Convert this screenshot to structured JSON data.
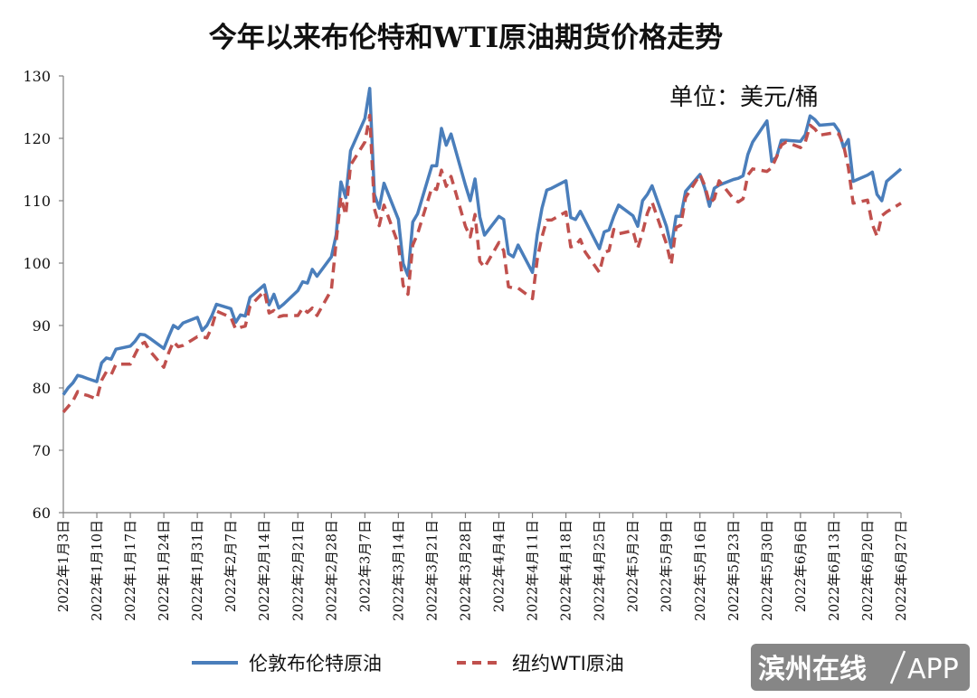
{
  "chart_data": {
    "type": "line",
    "title": "今年以来布伦特和WTI原油期货价格走势",
    "unit_label": "单位：美元/桶",
    "ylim": [
      60,
      130
    ],
    "yticks": [
      60,
      70,
      80,
      90,
      100,
      110,
      120,
      130
    ],
    "grid": false,
    "legend_position": "bottom",
    "x_start": "2022-01-03",
    "x_end": "2022-06-27",
    "x_tick_labels": [
      "2022年1月3日",
      "2022年1月10日",
      "2022年1月17日",
      "2022年1月24日",
      "2022年1月31日",
      "2022年2月7日",
      "2022年2月14日",
      "2022年2月21日",
      "2022年2月28日",
      "2022年3月7日",
      "2022年3月14日",
      "2022年3月21日",
      "2022年3月28日",
      "2022年4月4日",
      "2022年4月11日",
      "2022年4月18日",
      "2022年4月25日",
      "2022年5月2日",
      "2022年5月9日",
      "2022年5月16日",
      "2022年5月23日",
      "2022年5月30日",
      "2022年6月6日",
      "2022年6月13日",
      "2022年6月20日",
      "2022年6月27日"
    ],
    "series": [
      {
        "name": "伦敦布伦特原油",
        "color": "#4a7ebb",
        "dash": "solid",
        "points": [
          [
            0,
            78.9
          ],
          [
            1,
            80.0
          ],
          [
            2,
            80.8
          ],
          [
            3,
            82.0
          ],
          [
            4,
            81.8
          ],
          [
            5,
            81.5
          ],
          [
            7,
            81.0
          ],
          [
            8,
            84.0
          ],
          [
            9,
            84.8
          ],
          [
            10,
            84.6
          ],
          [
            11,
            86.2
          ],
          [
            14,
            86.7
          ],
          [
            15,
            87.5
          ],
          [
            16,
            88.6
          ],
          [
            17,
            88.5
          ],
          [
            18,
            88.0
          ],
          [
            21,
            86.3
          ],
          [
            22,
            88.2
          ],
          [
            23,
            90.0
          ],
          [
            24,
            89.5
          ],
          [
            25,
            90.4
          ],
          [
            28,
            91.3
          ],
          [
            29,
            89.2
          ],
          [
            30,
            90.0
          ],
          [
            31,
            91.5
          ],
          [
            32,
            93.4
          ],
          [
            35,
            92.7
          ],
          [
            36,
            90.5
          ],
          [
            37,
            91.7
          ],
          [
            38,
            91.5
          ],
          [
            39,
            94.5
          ],
          [
            42,
            96.5
          ],
          [
            43,
            93.3
          ],
          [
            44,
            95.0
          ],
          [
            45,
            92.8
          ],
          [
            46,
            93.4
          ],
          [
            49,
            95.6
          ],
          [
            50,
            97.0
          ],
          [
            51,
            96.8
          ],
          [
            52,
            99.0
          ],
          [
            53,
            97.9
          ],
          [
            56,
            101.0
          ],
          [
            57,
            104.5
          ],
          [
            58,
            113.0
          ],
          [
            59,
            110.5
          ],
          [
            60,
            118.0
          ],
          [
            63,
            123.2
          ],
          [
            64,
            128.0
          ],
          [
            65,
            111.0
          ],
          [
            66,
            108.8
          ],
          [
            67,
            112.8
          ],
          [
            70,
            107.0
          ],
          [
            71,
            99.9
          ],
          [
            72,
            98.0
          ],
          [
            73,
            106.6
          ],
          [
            74,
            107.9
          ],
          [
            77,
            115.6
          ],
          [
            78,
            115.6
          ],
          [
            79,
            121.6
          ],
          [
            80,
            118.9
          ],
          [
            81,
            120.7
          ],
          [
            84,
            112.5
          ],
          [
            85,
            110.0
          ],
          [
            86,
            113.5
          ],
          [
            87,
            107.4
          ],
          [
            88,
            104.5
          ],
          [
            91,
            107.5
          ],
          [
            92,
            107.0
          ],
          [
            93,
            101.5
          ],
          [
            94,
            101.0
          ],
          [
            95,
            102.9
          ],
          [
            98,
            98.5
          ],
          [
            99,
            104.6
          ],
          [
            100,
            108.8
          ],
          [
            101,
            111.7
          ],
          [
            102,
            112.0
          ],
          [
            105,
            113.2
          ],
          [
            106,
            107.3
          ],
          [
            107,
            107.0
          ],
          [
            108,
            108.3
          ],
          [
            109,
            106.8
          ],
          [
            112,
            102.3
          ],
          [
            113,
            105.0
          ],
          [
            114,
            105.3
          ],
          [
            115,
            107.5
          ],
          [
            116,
            109.3
          ],
          [
            119,
            107.6
          ],
          [
            120,
            105.9
          ],
          [
            121,
            110.0
          ],
          [
            122,
            111.0
          ],
          [
            123,
            112.4
          ],
          [
            126,
            105.9
          ],
          [
            127,
            102.5
          ],
          [
            128,
            107.5
          ],
          [
            129,
            107.5
          ],
          [
            130,
            111.5
          ],
          [
            133,
            114.2
          ],
          [
            134,
            112.0
          ],
          [
            135,
            109.1
          ],
          [
            136,
            112.0
          ],
          [
            137,
            112.5
          ],
          [
            140,
            113.4
          ],
          [
            141,
            113.6
          ],
          [
            142,
            114.0
          ],
          [
            143,
            117.4
          ],
          [
            144,
            119.4
          ],
          [
            147,
            122.8
          ],
          [
            148,
            116.3
          ],
          [
            149,
            117.0
          ],
          [
            150,
            119.7
          ],
          [
            151,
            119.7
          ],
          [
            154,
            119.5
          ],
          [
            155,
            120.6
          ],
          [
            156,
            123.6
          ],
          [
            157,
            123.0
          ],
          [
            158,
            122.1
          ],
          [
            161,
            122.3
          ],
          [
            162,
            121.2
          ],
          [
            163,
            118.5
          ],
          [
            164,
            119.8
          ],
          [
            165,
            113.1
          ],
          [
            168,
            114.1
          ],
          [
            169,
            114.6
          ],
          [
            170,
            111.0
          ],
          [
            171,
            110.0
          ],
          [
            172,
            113.1
          ],
          [
            175,
            115.1
          ]
        ]
      },
      {
        "name": "纽约WTI原油",
        "color": "#c0504d",
        "dash": "dashed",
        "points": [
          [
            0,
            76.1
          ],
          [
            1,
            77.0
          ],
          [
            2,
            77.9
          ],
          [
            3,
            79.4
          ],
          [
            4,
            79.0
          ],
          [
            5,
            78.8
          ],
          [
            7,
            78.2
          ],
          [
            8,
            81.2
          ],
          [
            9,
            82.6
          ],
          [
            10,
            82.1
          ],
          [
            11,
            83.8
          ],
          [
            14,
            83.8
          ],
          [
            15,
            85.4
          ],
          [
            16,
            86.9
          ],
          [
            17,
            87.3
          ],
          [
            18,
            86.0
          ],
          [
            21,
            83.3
          ],
          [
            22,
            85.6
          ],
          [
            23,
            87.4
          ],
          [
            24,
            86.6
          ],
          [
            25,
            86.8
          ],
          [
            28,
            88.2
          ],
          [
            29,
            88.2
          ],
          [
            30,
            88.0
          ],
          [
            31,
            89.7
          ],
          [
            32,
            92.3
          ],
          [
            35,
            91.3
          ],
          [
            36,
            89.4
          ],
          [
            37,
            89.7
          ],
          [
            38,
            89.9
          ],
          [
            39,
            93.1
          ],
          [
            42,
            95.5
          ],
          [
            43,
            92.0
          ],
          [
            44,
            92.4
          ],
          [
            45,
            91.4
          ],
          [
            46,
            91.6
          ],
          [
            49,
            91.6
          ],
          [
            50,
            92.8
          ],
          [
            51,
            92.1
          ],
          [
            52,
            92.8
          ],
          [
            53,
            91.6
          ],
          [
            56,
            95.7
          ],
          [
            57,
            103.4
          ],
          [
            58,
            110.6
          ],
          [
            59,
            107.7
          ],
          [
            60,
            115.7
          ],
          [
            63,
            119.4
          ],
          [
            64,
            123.7
          ],
          [
            65,
            108.7
          ],
          [
            66,
            106.0
          ],
          [
            67,
            109.3
          ],
          [
            70,
            103.0
          ],
          [
            71,
            96.4
          ],
          [
            72,
            95.0
          ],
          [
            73,
            102.9
          ],
          [
            74,
            104.7
          ],
          [
            77,
            112.1
          ],
          [
            78,
            111.8
          ],
          [
            79,
            114.9
          ],
          [
            80,
            112.3
          ],
          [
            81,
            113.9
          ],
          [
            84,
            105.9
          ],
          [
            85,
            104.2
          ],
          [
            86,
            107.8
          ],
          [
            87,
            100.3
          ],
          [
            88,
            99.3
          ],
          [
            91,
            103.3
          ],
          [
            92,
            102.0
          ],
          [
            93,
            96.2
          ],
          [
            94,
            96.0
          ],
          [
            95,
            96.0
          ],
          [
            98,
            94.3
          ],
          [
            99,
            100.6
          ],
          [
            100,
            104.2
          ],
          [
            101,
            106.9
          ],
          [
            102,
            106.9
          ],
          [
            105,
            108.2
          ],
          [
            106,
            102.6
          ],
          [
            107,
            102.8
          ],
          [
            108,
            103.8
          ],
          [
            109,
            101.8
          ],
          [
            112,
            98.5
          ],
          [
            113,
            101.7
          ],
          [
            114,
            102.0
          ],
          [
            115,
            105.4
          ],
          [
            116,
            104.7
          ],
          [
            119,
            105.2
          ],
          [
            120,
            102.4
          ],
          [
            121,
            104.9
          ],
          [
            122,
            108.0
          ],
          [
            123,
            109.8
          ],
          [
            126,
            103.1
          ],
          [
            127,
            99.8
          ],
          [
            128,
            105.7
          ],
          [
            129,
            106.1
          ],
          [
            130,
            110.5
          ],
          [
            133,
            114.2
          ],
          [
            134,
            112.4
          ],
          [
            135,
            109.6
          ],
          [
            136,
            110.3
          ],
          [
            137,
            113.2
          ],
          [
            140,
            110.3
          ],
          [
            141,
            109.8
          ],
          [
            142,
            110.3
          ],
          [
            143,
            114.1
          ],
          [
            144,
            115.1
          ],
          [
            147,
            114.7
          ],
          [
            148,
            115.3
          ],
          [
            149,
            117.0
          ],
          [
            150,
            118.9
          ],
          [
            151,
            119.4
          ],
          [
            154,
            118.5
          ],
          [
            155,
            119.4
          ],
          [
            156,
            122.1
          ],
          [
            157,
            121.5
          ],
          [
            158,
            120.5
          ],
          [
            161,
            120.9
          ],
          [
            162,
            120.7
          ],
          [
            163,
            118.9
          ],
          [
            164,
            115.3
          ],
          [
            165,
            109.6
          ],
          [
            168,
            110.1
          ],
          [
            169,
            106.2
          ],
          [
            170,
            104.3
          ],
          [
            171,
            107.6
          ],
          [
            172,
            108.2
          ],
          [
            175,
            109.6
          ]
        ]
      }
    ]
  },
  "watermark": {
    "text": "滨州在线",
    "app": "APP"
  }
}
